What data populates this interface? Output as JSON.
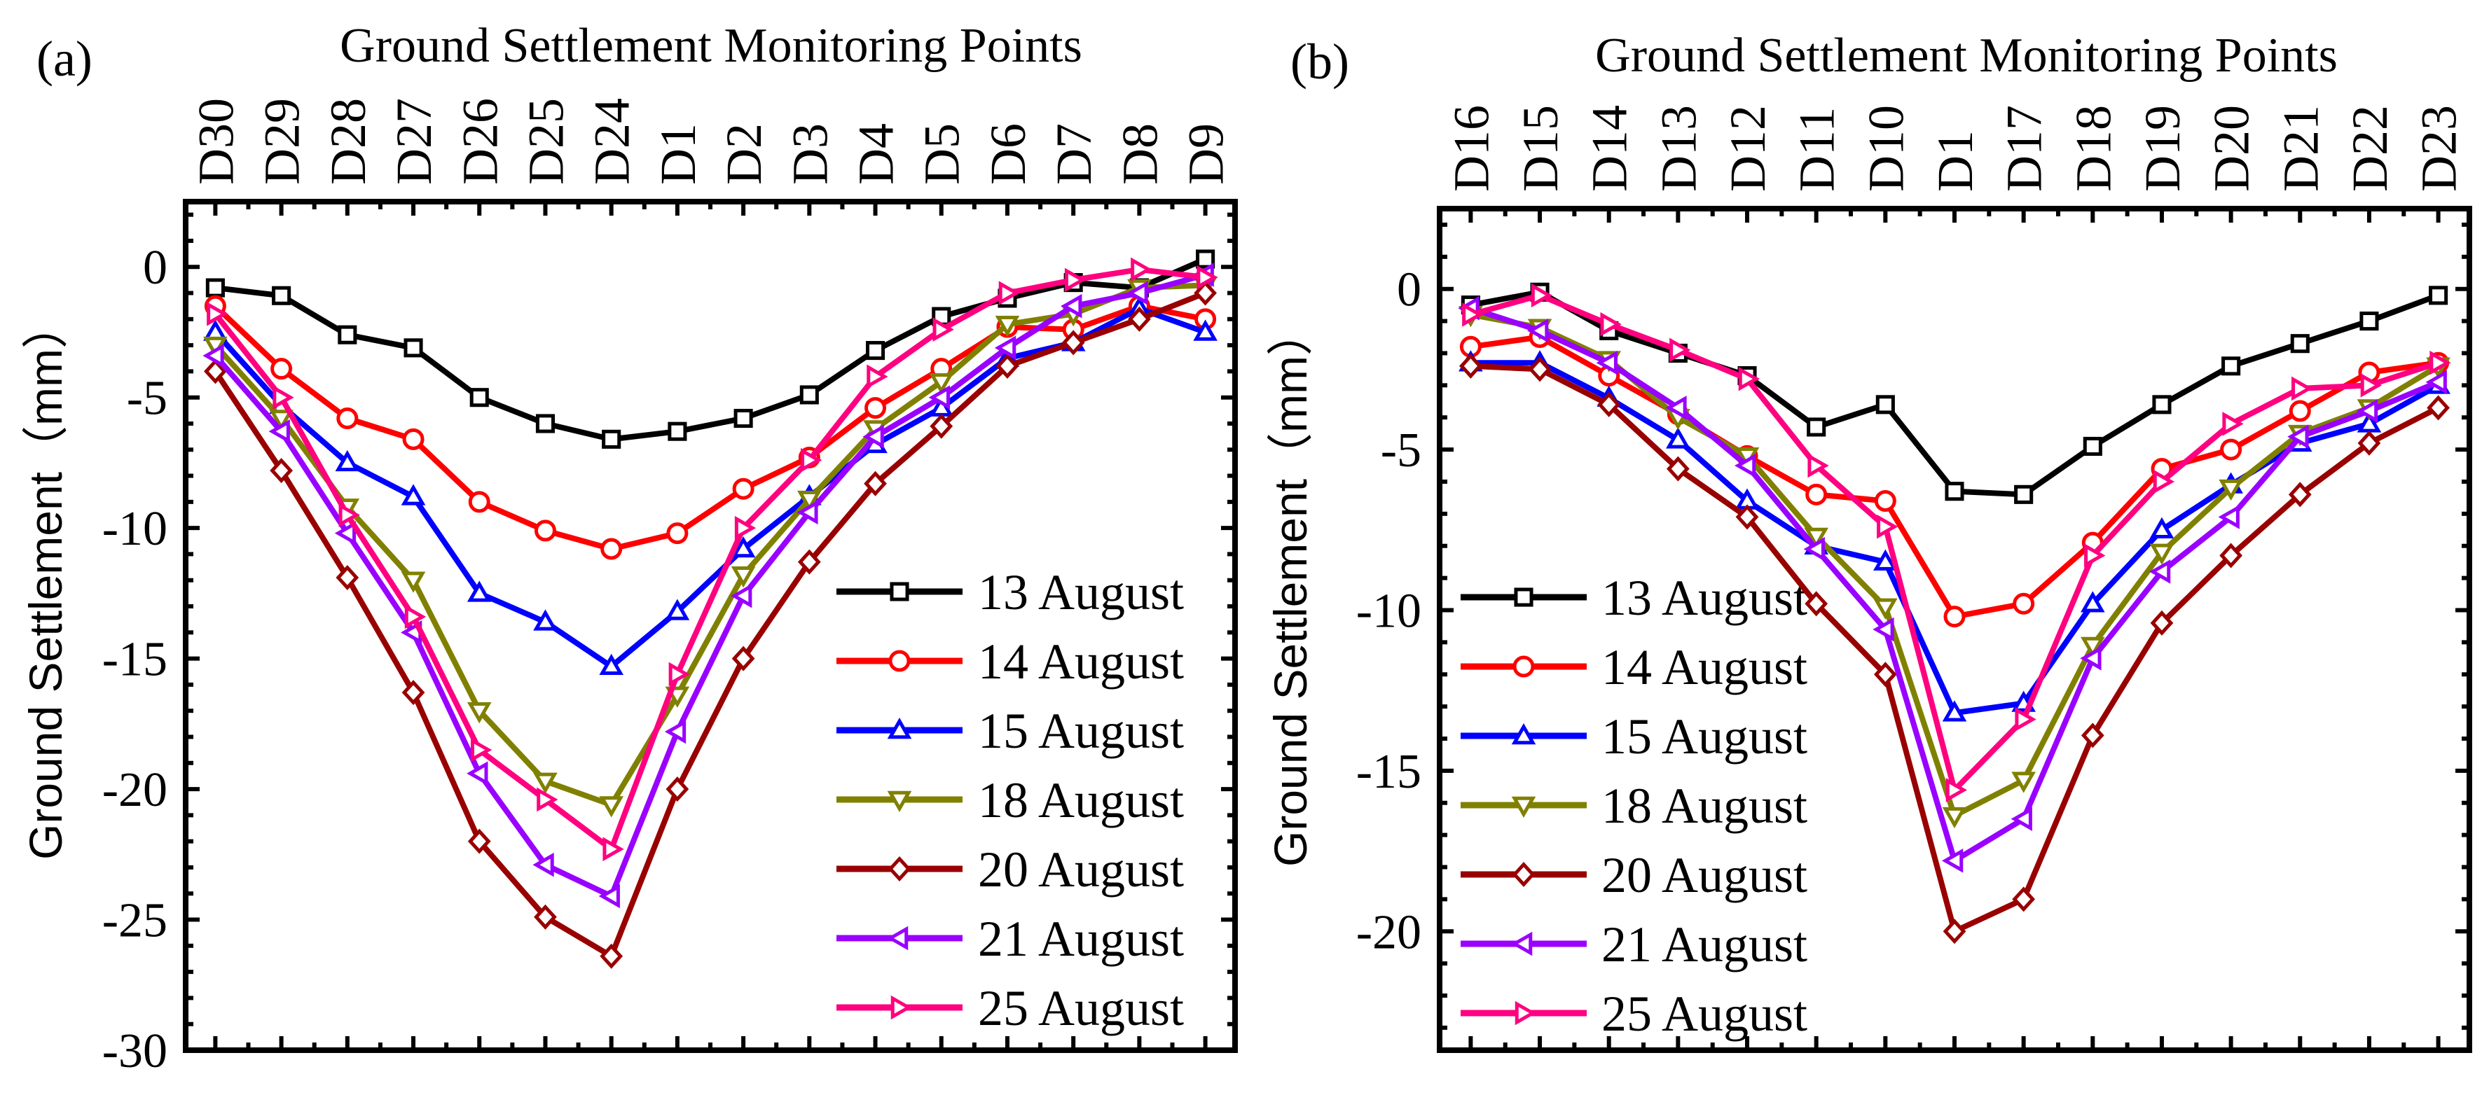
{
  "chart_data": [
    {
      "type": "line",
      "panel_label": "(a)",
      "title": "Ground Settlement Monitoring Points",
      "ylabel": "Ground Settlement（mm）",
      "ylim": [
        -30,
        2.5
      ],
      "yticks": [
        0,
        -5,
        -10,
        -15,
        -20,
        -25,
        -30
      ],
      "ytick_labels": [
        "0",
        "-5",
        "-10",
        "-15",
        "-20",
        "-25",
        "-30"
      ],
      "legend_position": "bottom-right",
      "categories": [
        "D30",
        "D29",
        "D28",
        "D27",
        "D26",
        "D25",
        "D24",
        "D1",
        "D2",
        "D3",
        "D4",
        "D5",
        "D6",
        "D7",
        "D8",
        "D9"
      ],
      "series": [
        {
          "name": "13 August",
          "color": "#000000",
          "marker": "square",
          "values": [
            -0.8,
            -1.1,
            -2.6,
            -3.1,
            -5.0,
            -6.0,
            -6.6,
            -6.3,
            -5.8,
            -4.9,
            -3.2,
            -1.9,
            -1.2,
            -0.6,
            -0.8,
            0.3
          ]
        },
        {
          "name": "14 August",
          "color": "#ff0000",
          "marker": "circle",
          "values": [
            -1.5,
            -3.9,
            -5.8,
            -6.6,
            -9.0,
            -10.1,
            -10.8,
            -10.2,
            -8.5,
            -7.3,
            -5.4,
            -3.9,
            -2.3,
            -2.4,
            -1.5,
            -2.0
          ]
        },
        {
          "name": "15 August",
          "color": "#0000ff",
          "marker": "triangle-up",
          "values": [
            -2.5,
            -5.3,
            -7.5,
            -8.8,
            -12.5,
            -13.6,
            -15.3,
            -13.2,
            -10.8,
            -8.8,
            -6.8,
            -5.4,
            -3.5,
            -2.9,
            -1.6,
            -2.5
          ]
        },
        {
          "name": "18 August",
          "color": "#808000",
          "marker": "triangle-down",
          "values": [
            -3.0,
            -5.8,
            -9.2,
            -12.0,
            -17.0,
            -19.7,
            -20.6,
            -16.4,
            -11.8,
            -8.9,
            -6.2,
            -4.4,
            -2.2,
            -1.8,
            -0.8,
            -0.7
          ]
        },
        {
          "name": "20 August",
          "color": "#990000",
          "marker": "diamond",
          "values": [
            -4.0,
            -7.8,
            -11.9,
            -16.3,
            -22.0,
            -24.9,
            -26.4,
            -20.0,
            -15.0,
            -11.3,
            -8.3,
            -6.1,
            -3.8,
            -2.9,
            -2.0,
            -1.0
          ]
        },
        {
          "name": "21 August",
          "color": "#9900ff",
          "marker": "triangle-left",
          "values": [
            -3.4,
            -6.3,
            -10.2,
            -14.0,
            -19.4,
            -22.9,
            -24.1,
            -17.8,
            -12.6,
            -9.4,
            -6.5,
            -5.0,
            -3.1,
            -1.5,
            -1.0,
            -0.3
          ]
        },
        {
          "name": "25 August",
          "color": "#ff0080",
          "marker": "triangle-right",
          "values": [
            -1.8,
            -5.0,
            -9.5,
            -13.4,
            -18.5,
            -20.4,
            -22.3,
            -15.6,
            -10.0,
            -7.4,
            -4.2,
            -2.4,
            -1.0,
            -0.5,
            -0.1,
            -0.4
          ]
        }
      ]
    },
    {
      "type": "line",
      "panel_label": "(b)",
      "title": "Ground Settlement Monitoring Points",
      "ylabel": "Ground Settlement（mm）",
      "ylim": [
        -23.7,
        2.5
      ],
      "yticks": [
        0,
        -5,
        -10,
        -15,
        -20
      ],
      "ytick_labels": [
        "0",
        "-5",
        "-10",
        "-15",
        "-20"
      ],
      "legend_position": "bottom-left",
      "categories": [
        "D16",
        "D15",
        "D14",
        "D13",
        "D12",
        "D11",
        "D10",
        "D1",
        "D17",
        "D18",
        "D19",
        "D20",
        "D21",
        "D22",
        "D23"
      ],
      "series": [
        {
          "name": "13 August",
          "color": "#000000",
          "marker": "square",
          "values": [
            -0.5,
            -0.1,
            -1.3,
            -2.0,
            -2.7,
            -4.3,
            -3.6,
            -6.3,
            -6.4,
            -4.9,
            -3.6,
            -2.4,
            -1.7,
            -1.0,
            -0.2
          ]
        },
        {
          "name": "14 August",
          "color": "#ff0000",
          "marker": "circle",
          "values": [
            -1.8,
            -1.5,
            -2.7,
            -3.9,
            -5.2,
            -6.4,
            -6.6,
            -10.2,
            -9.8,
            -7.9,
            -5.6,
            -5.0,
            -3.8,
            -2.6,
            -2.3
          ]
        },
        {
          "name": "15 August",
          "color": "#0000ff",
          "marker": "triangle-up",
          "values": [
            -2.3,
            -2.3,
            -3.4,
            -4.7,
            -6.6,
            -8.0,
            -8.5,
            -13.2,
            -12.9,
            -9.8,
            -7.5,
            -6.1,
            -4.8,
            -4.2,
            -3.0
          ]
        },
        {
          "name": "18 August",
          "color": "#808000",
          "marker": "triangle-down",
          "values": [
            -0.8,
            -1.2,
            -2.2,
            -4.0,
            -5.2,
            -7.7,
            -9.9,
            -16.4,
            -15.3,
            -11.1,
            -8.2,
            -6.2,
            -4.5,
            -3.7,
            -2.4
          ]
        },
        {
          "name": "20 August",
          "color": "#990000",
          "marker": "diamond",
          "values": [
            -2.4,
            -2.5,
            -3.6,
            -5.6,
            -7.1,
            -9.8,
            -12.0,
            -20.0,
            -19.0,
            -13.9,
            -10.4,
            -8.3,
            -6.4,
            -4.8,
            -3.7
          ]
        },
        {
          "name": "21 August",
          "color": "#9900ff",
          "marker": "triangle-left",
          "values": [
            -0.6,
            -1.3,
            -2.3,
            -3.7,
            -5.5,
            -8.1,
            -10.6,
            -17.8,
            -16.5,
            -11.5,
            -8.8,
            -7.1,
            -4.6,
            -3.8,
            -2.9
          ]
        },
        {
          "name": "25 August",
          "color": "#ff0080",
          "marker": "triangle-right",
          "values": [
            -0.8,
            -0.2,
            -1.1,
            -1.9,
            -2.8,
            -5.5,
            -7.4,
            -15.6,
            -13.4,
            -8.3,
            -6.0,
            -4.2,
            -3.1,
            -3.0,
            -2.3
          ]
        }
      ]
    }
  ]
}
